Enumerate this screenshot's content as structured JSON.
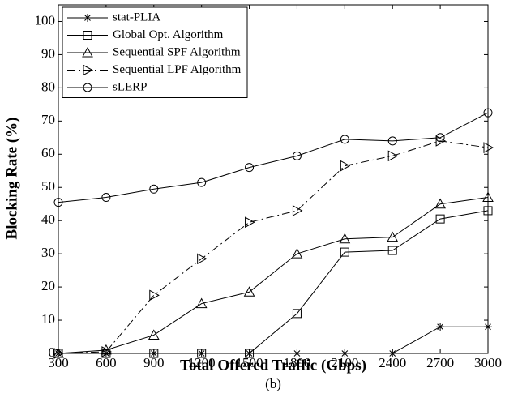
{
  "chart_data": {
    "type": "line",
    "subtitle": "(b)",
    "xlabel": "Total Offered Traffic (Gbps)",
    "ylabel": "Blocking Rate (%)",
    "x": [
      300,
      600,
      900,
      1200,
      1500,
      1800,
      2100,
      2400,
      2700,
      3000
    ],
    "xlim": [
      300,
      3000
    ],
    "xticks": [
      300,
      600,
      900,
      1200,
      1500,
      1800,
      2100,
      2400,
      2700,
      3000
    ],
    "ylim": [
      0,
      105
    ],
    "yticks": [
      0,
      10,
      20,
      30,
      40,
      50,
      60,
      70,
      80,
      90,
      100
    ],
    "legend": "upper left",
    "series": [
      {
        "name": "stat-PLIA",
        "color": "#000",
        "marker": "star",
        "dash": "solid",
        "values": [
          0,
          0,
          0,
          0,
          0,
          0,
          0,
          0,
          8,
          8
        ]
      },
      {
        "name": "Global Opt. Algorithm",
        "color": "#000",
        "marker": "square",
        "dash": "solid",
        "values": [
          0,
          0,
          0,
          0,
          0,
          12,
          30.5,
          31,
          40.5,
          43
        ]
      },
      {
        "name": "Sequential SPF Algorithm",
        "color": "#000",
        "marker": "triangle",
        "dash": "solid",
        "values": [
          0,
          1,
          5.5,
          15,
          18.5,
          30,
          34.5,
          35,
          45,
          47
        ]
      },
      {
        "name": "Sequential LPF Algorithm",
        "color": "#000",
        "marker": "right-triangle",
        "dash": "dashdot",
        "values": [
          0,
          0.5,
          17.5,
          28.5,
          39.5,
          43,
          56.5,
          59.5,
          64,
          62
        ]
      },
      {
        "name": "sLERP",
        "color": "#000",
        "marker": "circle",
        "dash": "solid",
        "values": [
          45.5,
          47,
          49.5,
          51.5,
          56,
          59.5,
          64.5,
          64,
          65,
          72.5
        ]
      }
    ]
  }
}
